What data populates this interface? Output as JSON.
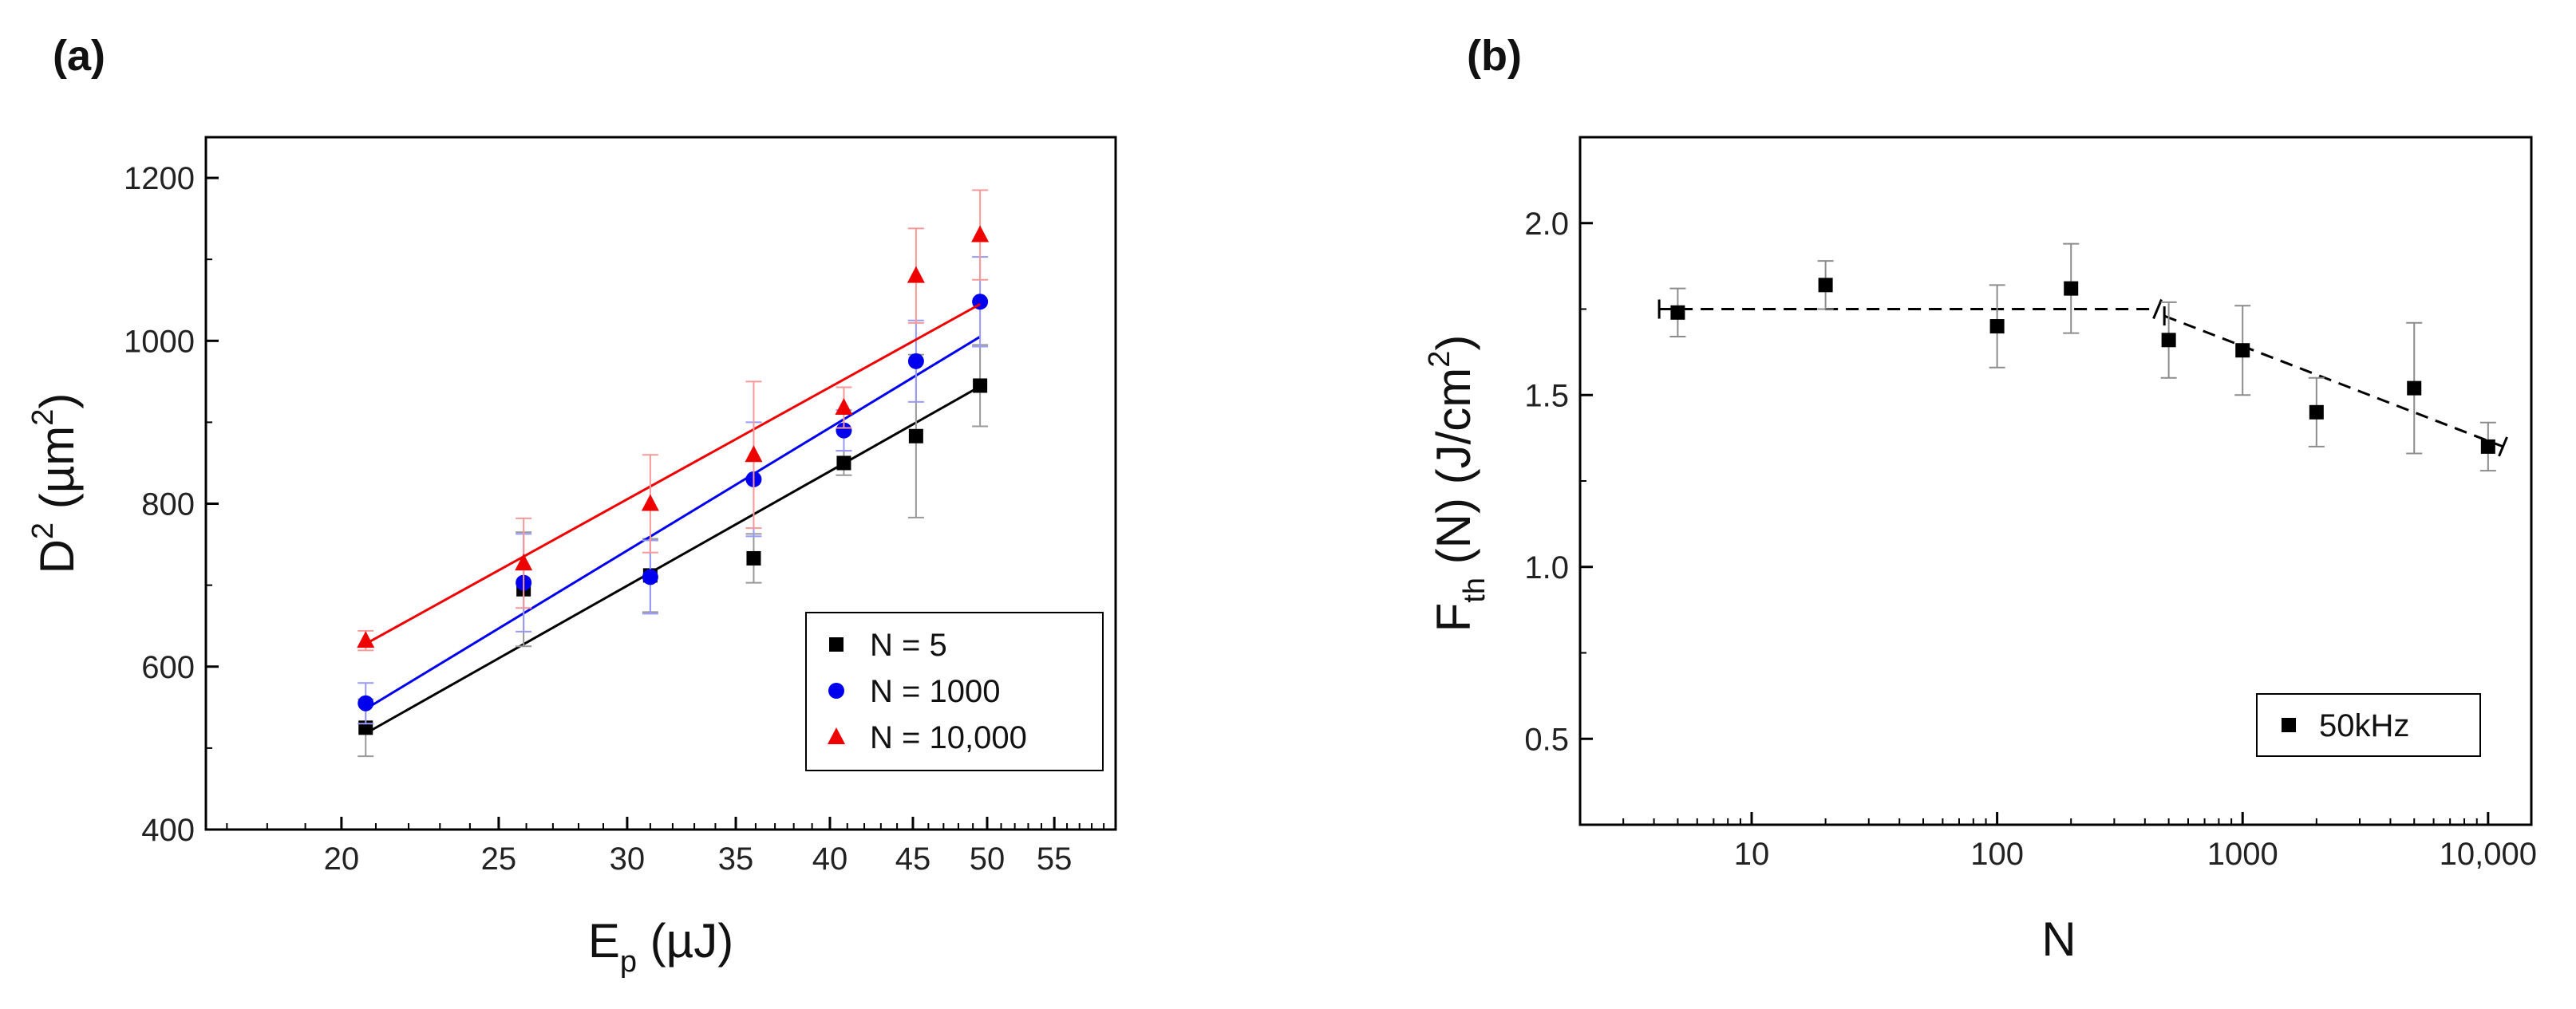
{
  "chart_data": [
    {
      "panel": "(a)",
      "type": "scatter",
      "xscale": "log",
      "xlabel": {
        "main": "E",
        "sub": "p",
        "unit": " (µJ)"
      },
      "ylabel": {
        "main": "D",
        "sup": "2",
        "unit_open": " (µm",
        "unit_sup": "2",
        "unit_close": ")"
      },
      "xlim": [
        16.5,
        60
      ],
      "ylim": [
        400,
        1250
      ],
      "xticks": [
        20,
        25,
        30,
        35,
        40,
        45,
        50,
        55
      ],
      "yticks": [
        400,
        600,
        800,
        1000,
        1200
      ],
      "legend_position": "lower-right",
      "series": [
        {
          "name": "N = 5",
          "marker": "square",
          "color": "#000000",
          "x": [
            20.7,
            25.9,
            31.0,
            35.9,
            40.8,
            45.2,
            49.5
          ],
          "y": [
            525,
            695,
            712,
            733,
            850,
            883,
            945
          ],
          "err": [
            35,
            70,
            45,
            30,
            15,
            100,
            50
          ],
          "fit": [
            518,
            944
          ]
        },
        {
          "name": "N = 1000",
          "marker": "circle",
          "color": "#0000ee",
          "x": [
            20.7,
            25.9,
            31.0,
            35.9,
            40.8,
            45.2,
            49.5
          ],
          "y": [
            555,
            703,
            710,
            830,
            890,
            975,
            1048
          ],
          "err": [
            25,
            60,
            45,
            70,
            25,
            50,
            55
          ],
          "fit": [
            548,
            1005
          ]
        },
        {
          "name": "N = 10,000",
          "marker": "triangle",
          "color": "#ee0000",
          "x": [
            20.7,
            25.9,
            31.0,
            35.9,
            40.8,
            45.2,
            49.5
          ],
          "y": [
            632,
            727,
            800,
            860,
            918,
            1080,
            1130
          ],
          "err": [
            12,
            55,
            60,
            90,
            25,
            58,
            55
          ],
          "fit": [
            628,
            1045
          ]
        }
      ]
    },
    {
      "panel": "(b)",
      "type": "scatter",
      "xscale": "log",
      "xlabel": {
        "main": "N"
      },
      "ylabel": {
        "main": "F",
        "sub": "th",
        "unit_open": " (N) (J/cm",
        "unit_sup": "2",
        "unit_close": ")"
      },
      "xlim": [
        2,
        15000
      ],
      "ylim": [
        0.25,
        2.25
      ],
      "xticks": [
        10,
        100,
        1000,
        10000
      ],
      "xtick_labels": [
        "10",
        "100",
        "1000",
        "10,000"
      ],
      "yticks": [
        0.5,
        1.0,
        1.5,
        2.0
      ],
      "ytick_labels": [
        "0.5",
        "1.0",
        "1.5",
        "2.0"
      ],
      "legend_position": "lower-right",
      "series": [
        {
          "name": "50kHz",
          "marker": "square",
          "color": "#000000",
          "x": [
            5,
            20,
            100,
            200,
            500,
            1000,
            2000,
            5000,
            10000
          ],
          "y": [
            1.74,
            1.82,
            1.7,
            1.81,
            1.66,
            1.63,
            1.45,
            1.52,
            1.35
          ],
          "err": [
            0.07,
            0.07,
            0.12,
            0.13,
            0.11,
            0.13,
            0.1,
            0.19,
            0.07
          ]
        }
      ],
      "trend_lines": [
        {
          "style": "dashed",
          "points": [
            [
              4.2,
              1.75
            ],
            [
              450,
              1.75
            ]
          ]
        },
        {
          "style": "dashed",
          "points": [
            [
              480,
              1.73
            ],
            [
              11500,
              1.35
            ]
          ]
        }
      ]
    }
  ]
}
